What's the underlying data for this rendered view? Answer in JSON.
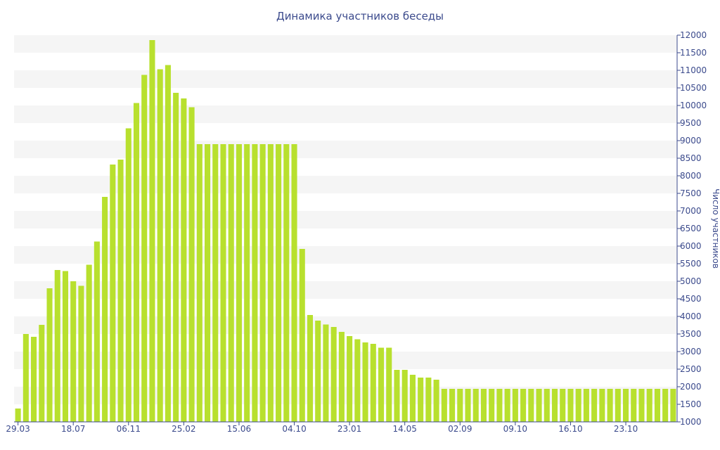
{
  "chart_data": {
    "type": "bar",
    "title": "Динамика участников беседы",
    "ylabel": "Число участников",
    "xlabel": "",
    "ylim": [
      1000,
      12000
    ],
    "y_ticks": [
      1000,
      1500,
      2000,
      2500,
      3000,
      3500,
      4000,
      4500,
      5000,
      5500,
      6000,
      6500,
      7000,
      7500,
      8000,
      8500,
      9000,
      9500,
      10000,
      10500,
      11000,
      11500,
      12000
    ],
    "y_axis_side": "right",
    "x_tick_labels": [
      {
        "index": 0,
        "label": "29.03"
      },
      {
        "index": 7,
        "label": "18.07"
      },
      {
        "index": 14,
        "label": "06.11"
      },
      {
        "index": 21,
        "label": "25.02"
      },
      {
        "index": 28,
        "label": "15.06"
      },
      {
        "index": 35,
        "label": "04.10"
      },
      {
        "index": 42,
        "label": "23.01"
      },
      {
        "index": 49,
        "label": "14.05"
      },
      {
        "index": 56,
        "label": "02.09"
      },
      {
        "index": 63,
        "label": "09.10"
      },
      {
        "index": 70,
        "label": "16.10"
      },
      {
        "index": 77,
        "label": "23.10"
      }
    ],
    "grid": "alternating horizontal bands",
    "legend": "none",
    "bar_color": "#b8e02e",
    "band_color": "#f5f5f5",
    "text_color": "#3b4a8c",
    "values": [
      1380,
      3500,
      3420,
      3760,
      4800,
      5320,
      5290,
      5000,
      4870,
      5470,
      6130,
      7400,
      8320,
      8460,
      9350,
      10070,
      10870,
      11860,
      11030,
      11150,
      10360,
      10200,
      9950,
      8900,
      8900,
      8900,
      8900,
      8900,
      8900,
      8900,
      8900,
      8900,
      8900,
      8900,
      8900,
      8900,
      5920,
      4040,
      3880,
      3770,
      3700,
      3560,
      3440,
      3350,
      3260,
      3220,
      3110,
      3110,
      2480,
      2480,
      2340,
      2260,
      2260,
      2200,
      1940,
      1940,
      1940,
      1940,
      1940,
      1940,
      1940,
      1940,
      1940,
      1940,
      1940,
      1940,
      1940,
      1940,
      1940,
      1940,
      1940,
      1940,
      1940,
      1940,
      1940,
      1940,
      1940,
      1940,
      1940,
      1940,
      1940,
      1940,
      1940,
      1940
    ]
  }
}
